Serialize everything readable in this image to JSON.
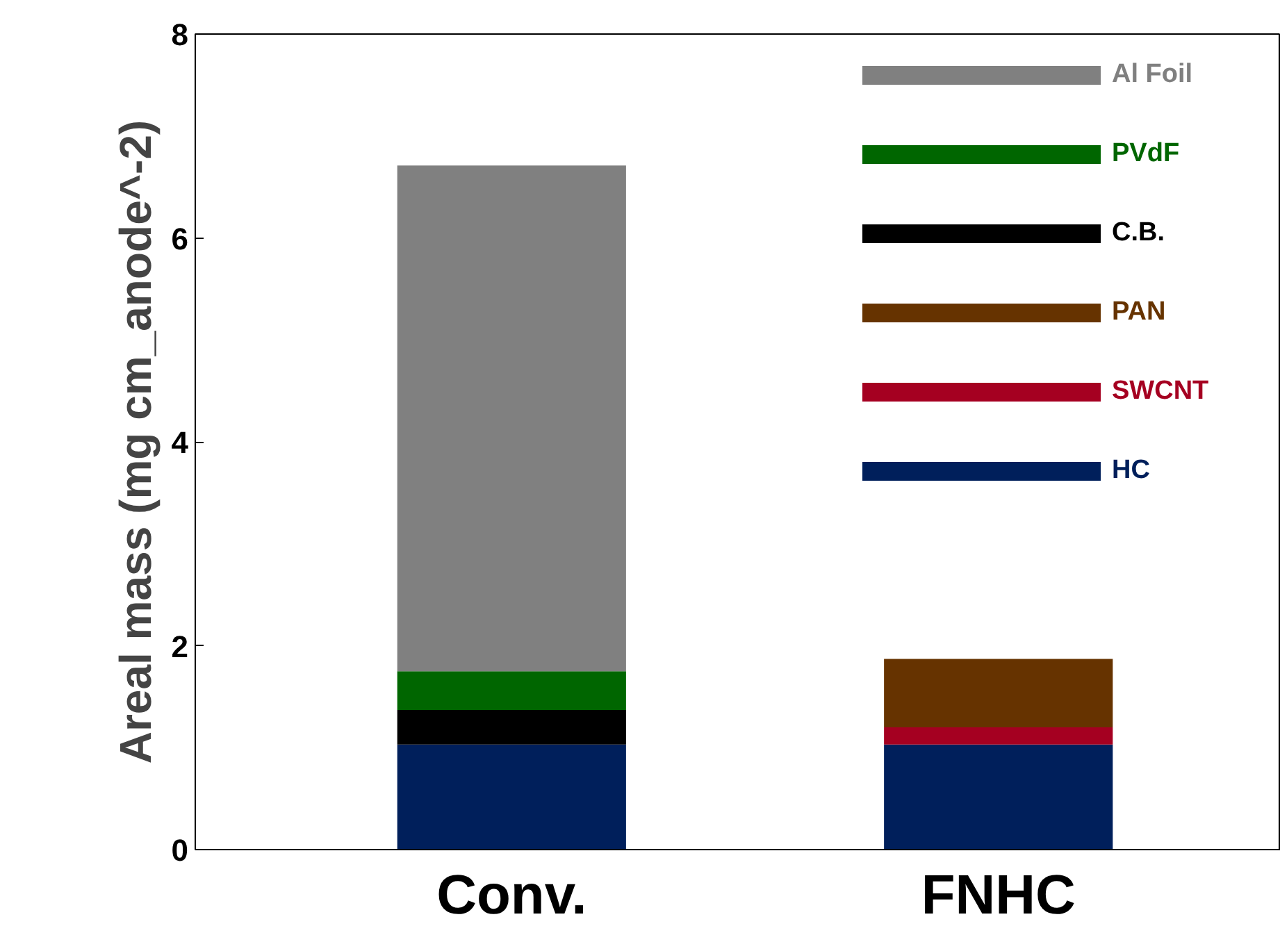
{
  "chart_data": {
    "type": "bar",
    "stacked": true,
    "ylabel": "Areal mass (mg cm_anode^-2)",
    "categories": [
      "Conv.",
      "FNHC"
    ],
    "series": [
      {
        "name": "HC",
        "color": "#001f5b",
        "values": [
          1.03,
          1.03
        ]
      },
      {
        "name": "SWCNT",
        "color": "#a50021",
        "values": [
          0,
          0.17
        ]
      },
      {
        "name": "PAN",
        "color": "#663300",
        "values": [
          0,
          0.67
        ]
      },
      {
        "name": "C.B.",
        "color": "#000000",
        "values": [
          0.34,
          0
        ]
      },
      {
        "name": "PVdF",
        "color": "#006600",
        "values": [
          0.38,
          0
        ]
      },
      {
        "name": "Al Foil",
        "color": "#808080",
        "values": [
          4.96,
          0
        ]
      }
    ],
    "ylim": [
      0,
      8
    ],
    "yticks": [
      0,
      2,
      4,
      6,
      8
    ],
    "grid": false,
    "legend": "top right"
  }
}
